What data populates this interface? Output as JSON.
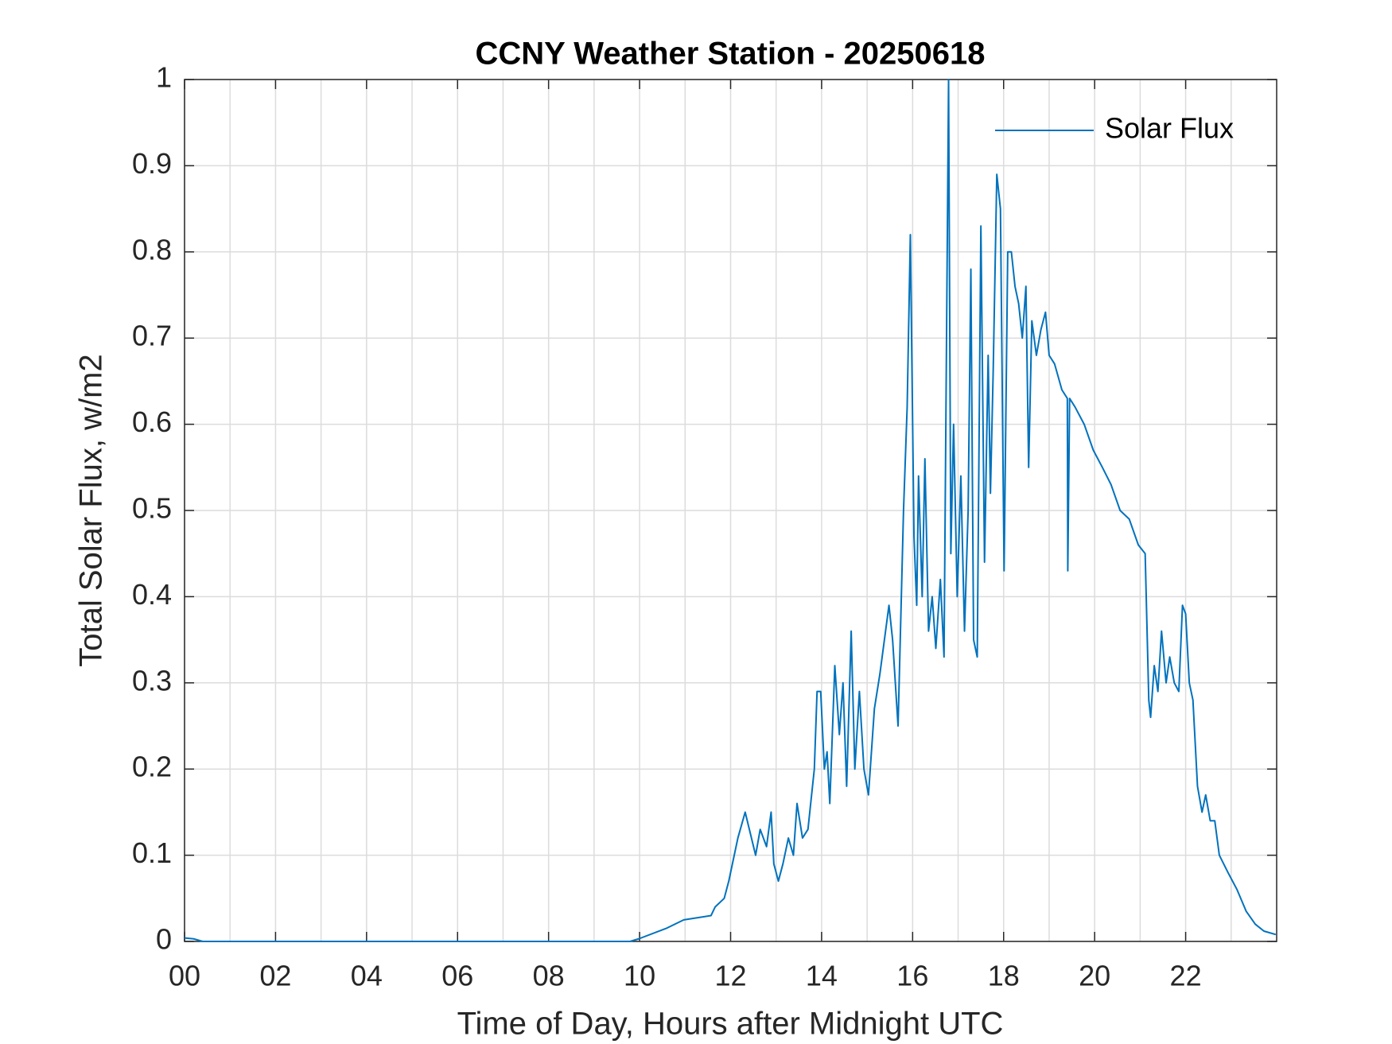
{
  "chart_data": {
    "type": "line",
    "title": "CCNY Weather Station - 20250618",
    "x_label": "Time of Day, Hours after Midnight UTC",
    "y_label": "Total Solar Flux, w/m2",
    "xlim": [
      0,
      24
    ],
    "ylim": [
      0,
      1
    ],
    "xticks": [
      {
        "value": 0,
        "label": "00"
      },
      {
        "value": 2,
        "label": "02"
      },
      {
        "value": 4,
        "label": "04"
      },
      {
        "value": 6,
        "label": "06"
      },
      {
        "value": 8,
        "label": "08"
      },
      {
        "value": 10,
        "label": "10"
      },
      {
        "value": 12,
        "label": "12"
      },
      {
        "value": 14,
        "label": "14"
      },
      {
        "value": 16,
        "label": "16"
      },
      {
        "value": 18,
        "label": "18"
      },
      {
        "value": 20,
        "label": "20"
      },
      {
        "value": 22,
        "label": "22"
      }
    ],
    "minor_xticks": [
      1,
      3,
      5,
      7,
      9,
      11,
      13,
      15,
      17,
      19,
      21,
      23
    ],
    "yticks": [
      0,
      0.1,
      0.2,
      0.3,
      0.4,
      0.5,
      0.6,
      0.7,
      0.8,
      0.9,
      1
    ],
    "grid": true,
    "legend": "northeast",
    "x": [
      0,
      0.2,
      0.4,
      9.79,
      9.98,
      10.58,
      10.97,
      11.57,
      11.66,
      11.86,
      11.96,
      12.16,
      12.32,
      12.55,
      12.65,
      12.79,
      12.89,
      12.95,
      13.05,
      13.15,
      13.27,
      13.38,
      13.46,
      13.58,
      13.7,
      13.84,
      13.9,
      13.98,
      14.06,
      14.12,
      14.18,
      14.29,
      14.39,
      14.47,
      14.55,
      14.65,
      14.73,
      14.83,
      14.93,
      15.03,
      15.16,
      15.28,
      15.48,
      15.56,
      15.68,
      15.8,
      15.88,
      15.95,
      16.03,
      16.09,
      16.13,
      16.21,
      16.27,
      16.35,
      16.43,
      16.51,
      16.61,
      16.69,
      16.79,
      16.84,
      16.9,
      16.98,
      17.06,
      17.14,
      17.22,
      17.28,
      17.34,
      17.42,
      17.5,
      17.58,
      17.66,
      17.71,
      17.77,
      17.85,
      17.93,
      18.01,
      18.09,
      18.17,
      18.25,
      18.33,
      18.41,
      18.49,
      18.55,
      18.62,
      18.72,
      18.82,
      18.92,
      19.0,
      19.12,
      19.28,
      19.4,
      19.41,
      19.45,
      19.57,
      19.77,
      19.97,
      20.17,
      20.36,
      20.56,
      20.76,
      20.96,
      21.11,
      21.19,
      21.23,
      21.31,
      21.39,
      21.47,
      21.57,
      21.65,
      21.75,
      21.85,
      21.93,
      22.0,
      22.08,
      22.16,
      22.26,
      22.36,
      22.44,
      22.54,
      22.64,
      22.74,
      22.93,
      23.13,
      23.33,
      23.53,
      23.72,
      23.98
    ],
    "series": [
      {
        "name": "Solar Flux",
        "color": "#0072bd",
        "values": [
          0.004,
          0.003,
          0,
          0,
          0.003,
          0.015,
          0.025,
          0.03,
          0.04,
          0.05,
          0.07,
          0.12,
          0.15,
          0.1,
          0.13,
          0.11,
          0.15,
          0.09,
          0.07,
          0.09,
          0.12,
          0.1,
          0.16,
          0.12,
          0.13,
          0.2,
          0.29,
          0.29,
          0.2,
          0.22,
          0.16,
          0.32,
          0.24,
          0.3,
          0.18,
          0.36,
          0.2,
          0.29,
          0.2,
          0.17,
          0.27,
          0.31,
          0.39,
          0.35,
          0.25,
          0.5,
          0.62,
          0.82,
          0.47,
          0.39,
          0.54,
          0.4,
          0.56,
          0.36,
          0.4,
          0.34,
          0.42,
          0.33,
          1.0,
          0.45,
          0.6,
          0.4,
          0.54,
          0.36,
          0.5,
          0.78,
          0.35,
          0.33,
          0.83,
          0.44,
          0.68,
          0.52,
          0.66,
          0.89,
          0.85,
          0.43,
          0.8,
          0.8,
          0.76,
          0.74,
          0.7,
          0.76,
          0.55,
          0.72,
          0.68,
          0.71,
          0.73,
          0.68,
          0.67,
          0.64,
          0.63,
          0.43,
          0.63,
          0.62,
          0.6,
          0.57,
          0.55,
          0.53,
          0.5,
          0.49,
          0.46,
          0.45,
          0.28,
          0.26,
          0.32,
          0.29,
          0.36,
          0.3,
          0.33,
          0.3,
          0.29,
          0.39,
          0.38,
          0.3,
          0.28,
          0.18,
          0.15,
          0.17,
          0.14,
          0.14,
          0.1,
          0.08,
          0.06,
          0.035,
          0.02,
          0.012,
          0.008
        ]
      }
    ]
  }
}
